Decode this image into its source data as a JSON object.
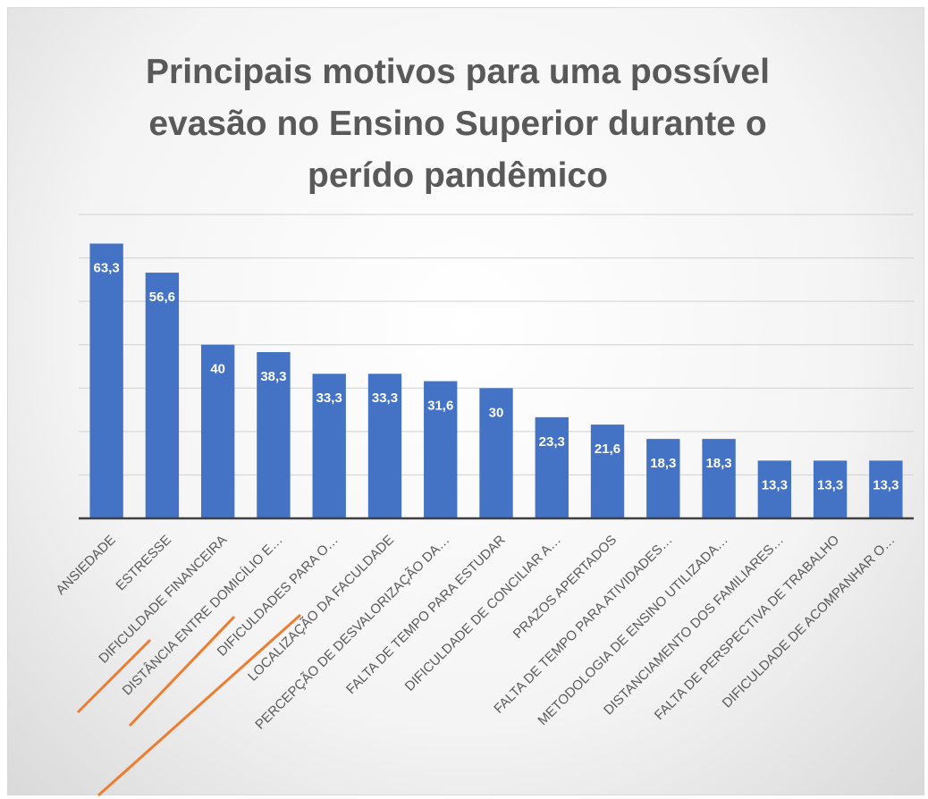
{
  "chart_data": {
    "type": "bar",
    "title": "Principais motivos para uma possível evasão no Ensino Superior durante o perído pandêmico",
    "categories": [
      "ANSIEDADE",
      "ESTRESSE",
      "DIFICULDADE FINANCEIRA",
      "DISTÂNCIA ENTRE DOMICÍLIO E…",
      "DIFICULDADES PARA O…",
      "LOCALIZAÇÃO DA FACULDADE",
      "PERCEPÇÃO DE DESVALORIZAÇÃO DA…",
      "FALTA DE TEMPO PARA ESTUDAR",
      "DIFICULDADE DE CONCILIAR A…",
      "PRAZOS APERTADOS",
      "FALTA DE TEMPO PARA ATIVIDADES…",
      "METODOLOGIA DE ENSINO UTILIZADA…",
      "DISTANCIAMENTO DOS FAMILIARES…",
      "FALTA DE PERSPECTIVA DE TRABALHO",
      "DIFICULDADE DE ACOMPANHAR O…"
    ],
    "values": [
      63.3,
      56.6,
      40,
      38.3,
      33.3,
      33.3,
      31.6,
      30,
      23.3,
      21.6,
      18.3,
      18.3,
      13.3,
      13.3,
      13.3
    ],
    "value_labels": [
      "63,3",
      "56,6",
      "40",
      "38,3",
      "33,3",
      "33,3",
      "31,6",
      "30",
      "23,3",
      "21,6",
      "18,3",
      "18,3",
      "13,3",
      "13,3",
      "13,3"
    ],
    "color": "#4472c4",
    "ylim": [
      0,
      70
    ],
    "yticks": [
      0,
      10,
      20,
      30,
      40,
      50,
      60,
      70
    ],
    "grid": true
  }
}
